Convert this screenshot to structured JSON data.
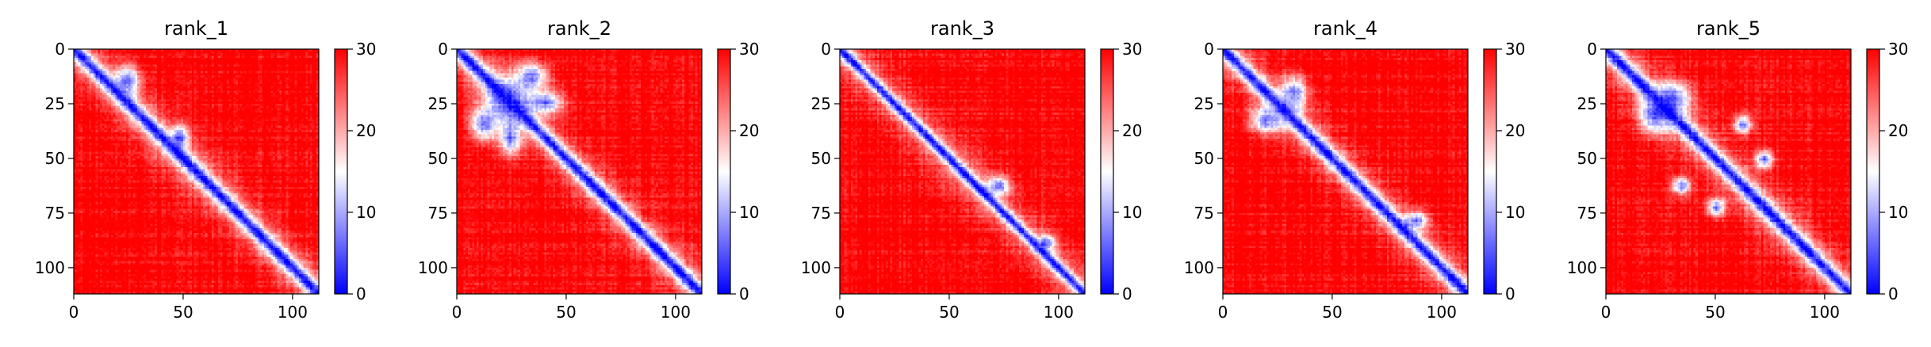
{
  "chart_data": [
    {
      "type": "heatmap",
      "title": "rank_1",
      "size": 112,
      "x_ticks": [
        0,
        50,
        100
      ],
      "y_ticks": [
        0,
        25,
        50,
        75,
        100
      ],
      "colorbar": {
        "ticks": [
          0,
          10,
          20,
          30
        ],
        "range": [
          0,
          30
        ],
        "colormap": "bwr"
      },
      "diagonal_width": 4.5,
      "near_diagonal_spread": 0.55,
      "blobs": [
        [
          14,
          24,
          7,
          5.5
        ],
        [
          40,
          48,
          5,
          4
        ]
      ]
    },
    {
      "type": "heatmap",
      "title": "rank_2",
      "size": 112,
      "x_ticks": [
        0,
        50,
        100
      ],
      "y_ticks": [
        0,
        25,
        50,
        75,
        100
      ],
      "colorbar": {
        "ticks": [
          0,
          10,
          20,
          30
        ],
        "range": [
          0,
          30
        ],
        "colormap": "bwr"
      },
      "diagonal_width": 4.5,
      "near_diagonal_spread": 0.45,
      "blobs": [
        [
          23,
          23,
          11,
          11
        ],
        [
          12,
          34,
          6,
          7
        ],
        [
          34,
          12,
          7,
          6
        ],
        [
          24,
          40,
          5,
          8
        ],
        [
          40,
          24,
          8,
          5
        ]
      ]
    },
    {
      "type": "heatmap",
      "title": "rank_3",
      "size": 112,
      "x_ticks": [
        0,
        50,
        100
      ],
      "y_ticks": [
        0,
        25,
        50,
        75,
        100
      ],
      "colorbar": {
        "ticks": [
          0,
          10,
          20,
          30
        ],
        "range": [
          0,
          30
        ],
        "colormap": "bwr"
      },
      "diagonal_width": 3.5,
      "near_diagonal_spread": 0.5,
      "blobs": [
        [
          62,
          72,
          4,
          5
        ],
        [
          88,
          94,
          3.5,
          4
        ]
      ]
    },
    {
      "type": "heatmap",
      "title": "rank_4",
      "size": 112,
      "x_ticks": [
        0,
        50,
        100
      ],
      "y_ticks": [
        0,
        25,
        50,
        75,
        100
      ],
      "colorbar": {
        "ticks": [
          0,
          10,
          20,
          30
        ],
        "range": [
          0,
          30
        ],
        "colormap": "bwr"
      },
      "diagonal_width": 4.5,
      "near_diagonal_spread": 0.5,
      "blobs": [
        [
          20,
          32,
          8,
          6
        ],
        [
          32,
          20,
          6,
          8
        ],
        [
          78,
          88,
          4,
          5
        ]
      ]
    },
    {
      "type": "heatmap",
      "title": "rank_5",
      "size": 112,
      "x_ticks": [
        0,
        50,
        100
      ],
      "y_ticks": [
        0,
        25,
        50,
        75,
        100
      ],
      "colorbar": {
        "ticks": [
          0,
          10,
          20,
          30
        ],
        "range": [
          0,
          30
        ],
        "colormap": "bwr"
      },
      "diagonal_width": 4.5,
      "near_diagonal_spread": 0.55,
      "blobs": [
        [
          22,
          30,
          7,
          8
        ],
        [
          30,
          22,
          8,
          7
        ],
        [
          34,
          62,
          4,
          4
        ],
        [
          62,
          34,
          4,
          4
        ],
        [
          50,
          72,
          4,
          4
        ],
        [
          72,
          50,
          4,
          4
        ]
      ]
    }
  ]
}
